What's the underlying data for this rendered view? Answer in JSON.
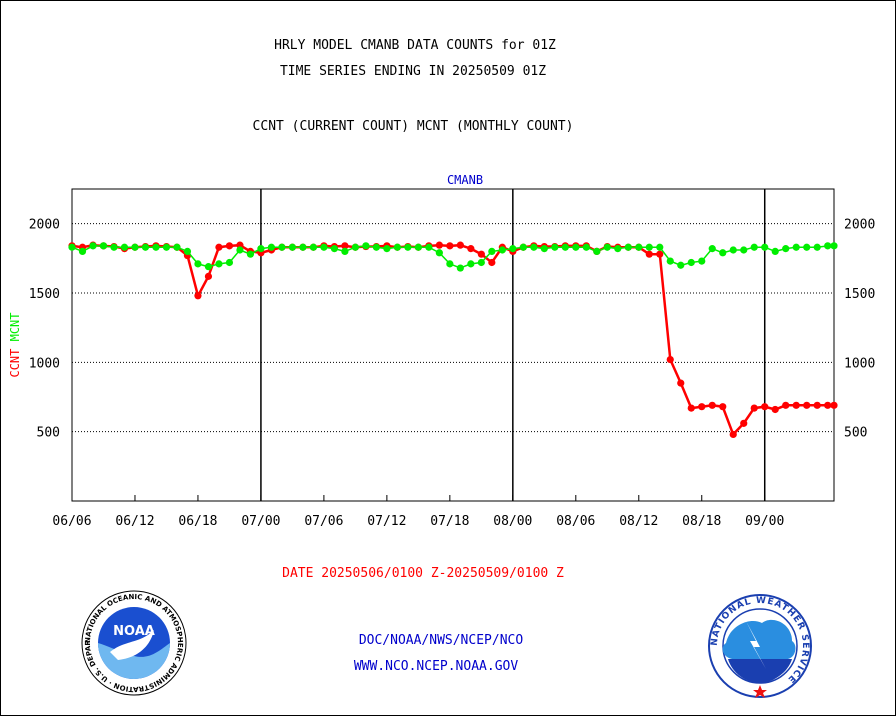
{
  "header": {
    "title_line1": "HRLY MODEL CMANB DATA COUNTS for 01Z",
    "title_line2": "TIME SERIES ENDING IN 20250509 01Z",
    "title_line3": "CCNT (CURRENT COUNT) MCNT (MONTHLY COUNT)"
  },
  "footer": {
    "date_range": "DATE 20250506/0100 Z-20250509/0100 Z",
    "org_line": "DOC/NOAA/NWS/NCEP/NCO",
    "url_line": "WWW.NCO.NCEP.NOAA.GOV"
  },
  "logos": {
    "noaa_label": "NOAA",
    "nws_ring_text": "NATIONAL WEATHER SERVICE",
    "noaa_ring_text": "NATIONAL OCEANIC AND ATMOSPHERIC ADMINISTRATION · U.S. DEPARTMENT OF COMMERCE"
  },
  "colors": {
    "ccnt": "#ff0000",
    "mcnt": "#00ee00",
    "axis": "#000000",
    "title_blue": "#0000cc"
  },
  "chart_data": {
    "type": "line",
    "panel_label": "CMANB",
    "ylabel_ccnt": "CCNT",
    "ylabel_mcnt": "MCNT",
    "ylim": [
      0,
      2250
    ],
    "y_ticks": [
      500,
      1000,
      1500,
      2000
    ],
    "grid": true,
    "x_ticks": [
      "06/06",
      "06/12",
      "06/18",
      "07/00",
      "07/06",
      "07/12",
      "07/18",
      "08/00",
      "08/06",
      "08/12",
      "08/18",
      "09/00"
    ],
    "x_start_hour": 0,
    "x_end_hour": 72.6,
    "day_boundaries_hours": [
      18,
      42,
      66
    ],
    "series": [
      {
        "name": "CCNT",
        "color": "#ff0000",
        "x_hours": [
          0,
          1,
          2,
          3,
          4,
          5,
          6,
          7,
          8,
          9,
          10,
          11,
          12,
          13,
          14,
          15,
          16,
          17,
          18,
          19,
          20,
          21,
          22,
          23,
          24,
          25,
          26,
          27,
          28,
          29,
          30,
          31,
          32,
          33,
          34,
          35,
          36,
          37,
          38,
          39,
          40,
          41,
          42,
          43,
          44,
          45,
          46,
          47,
          48,
          49,
          50,
          51,
          52,
          53,
          54,
          55,
          56,
          57,
          58,
          59,
          60,
          61,
          62,
          63,
          64,
          65,
          66,
          67,
          68,
          69,
          70,
          71,
          72,
          72.6
        ],
        "values": [
          1840,
          1830,
          1845,
          1840,
          1835,
          1820,
          1830,
          1835,
          1840,
          1835,
          1830,
          1770,
          1480,
          1620,
          1830,
          1840,
          1845,
          1800,
          1790,
          1810,
          1830,
          1830,
          1830,
          1830,
          1840,
          1835,
          1840,
          1830,
          1835,
          1835,
          1840,
          1830,
          1835,
          1830,
          1840,
          1845,
          1840,
          1845,
          1820,
          1780,
          1720,
          1830,
          1800,
          1830,
          1840,
          1835,
          1835,
          1840,
          1840,
          1840,
          1800,
          1835,
          1830,
          1830,
          1830,
          1780,
          1780,
          1020,
          850,
          670,
          680,
          690,
          680,
          480,
          560,
          670,
          680,
          660,
          690,
          690,
          690,
          690,
          690,
          690
        ]
      },
      {
        "name": "MCNT",
        "color": "#00ee00",
        "x_hours": [
          0,
          1,
          2,
          3,
          4,
          5,
          6,
          7,
          8,
          9,
          10,
          11,
          12,
          13,
          14,
          15,
          16,
          17,
          18,
          19,
          20,
          21,
          22,
          23,
          24,
          25,
          26,
          27,
          28,
          29,
          30,
          31,
          32,
          33,
          34,
          35,
          36,
          37,
          38,
          39,
          40,
          41,
          42,
          43,
          44,
          45,
          46,
          47,
          48,
          49,
          50,
          51,
          52,
          53,
          54,
          55,
          56,
          57,
          58,
          59,
          60,
          61,
          62,
          63,
          64,
          65,
          66,
          67,
          68,
          69,
          70,
          71,
          72,
          72.6
        ],
        "values": [
          1830,
          1800,
          1840,
          1840,
          1830,
          1830,
          1830,
          1830,
          1830,
          1830,
          1830,
          1800,
          1710,
          1690,
          1710,
          1720,
          1810,
          1780,
          1820,
          1830,
          1830,
          1830,
          1830,
          1830,
          1830,
          1820,
          1800,
          1830,
          1840,
          1830,
          1820,
          1830,
          1830,
          1830,
          1830,
          1790,
          1710,
          1680,
          1710,
          1720,
          1800,
          1810,
          1820,
          1830,
          1830,
          1820,
          1830,
          1830,
          1830,
          1830,
          1800,
          1830,
          1820,
          1830,
          1830,
          1830,
          1830,
          1730,
          1700,
          1720,
          1730,
          1820,
          1790,
          1810,
          1810,
          1830,
          1830,
          1800,
          1820,
          1830,
          1830,
          1830,
          1840,
          1840
        ]
      }
    ]
  }
}
